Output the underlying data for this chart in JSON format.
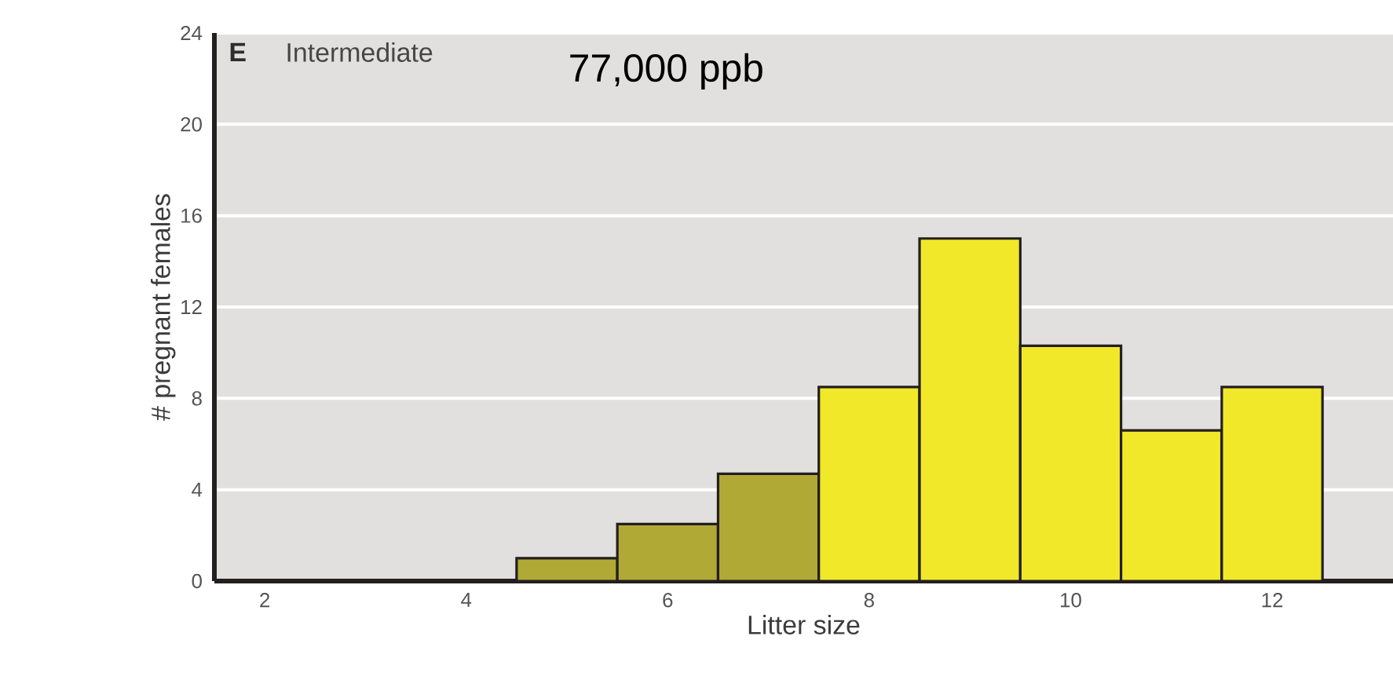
{
  "chart_data": {
    "type": "histogram",
    "xlabel": "Litter size",
    "ylabel": "# pregnant females",
    "annotations": [
      "E",
      "Intermediate",
      "77,000 ppb"
    ],
    "bins": [
      4.5,
      5.5,
      6.5,
      7.5,
      8.5,
      9.5,
      10.5,
      11.5,
      12.5
    ],
    "values": [
      1,
      2.5,
      4.7,
      8.5,
      15,
      10.3,
      6.6,
      8.5
    ],
    "colors": [
      "#b0a935",
      "#b0a935",
      "#b0a935",
      "#f2e82a",
      "#f2e82a",
      "#f2e82a",
      "#f2e82a",
      "#f2e82a"
    ],
    "xlim": [
      1.5,
      13.2
    ],
    "ylim": [
      0,
      24
    ],
    "xticks": [
      2,
      4,
      6,
      8,
      10,
      12
    ],
    "yticks": [
      0,
      4,
      8,
      12,
      16,
      20,
      24
    ],
    "grid": "y"
  }
}
